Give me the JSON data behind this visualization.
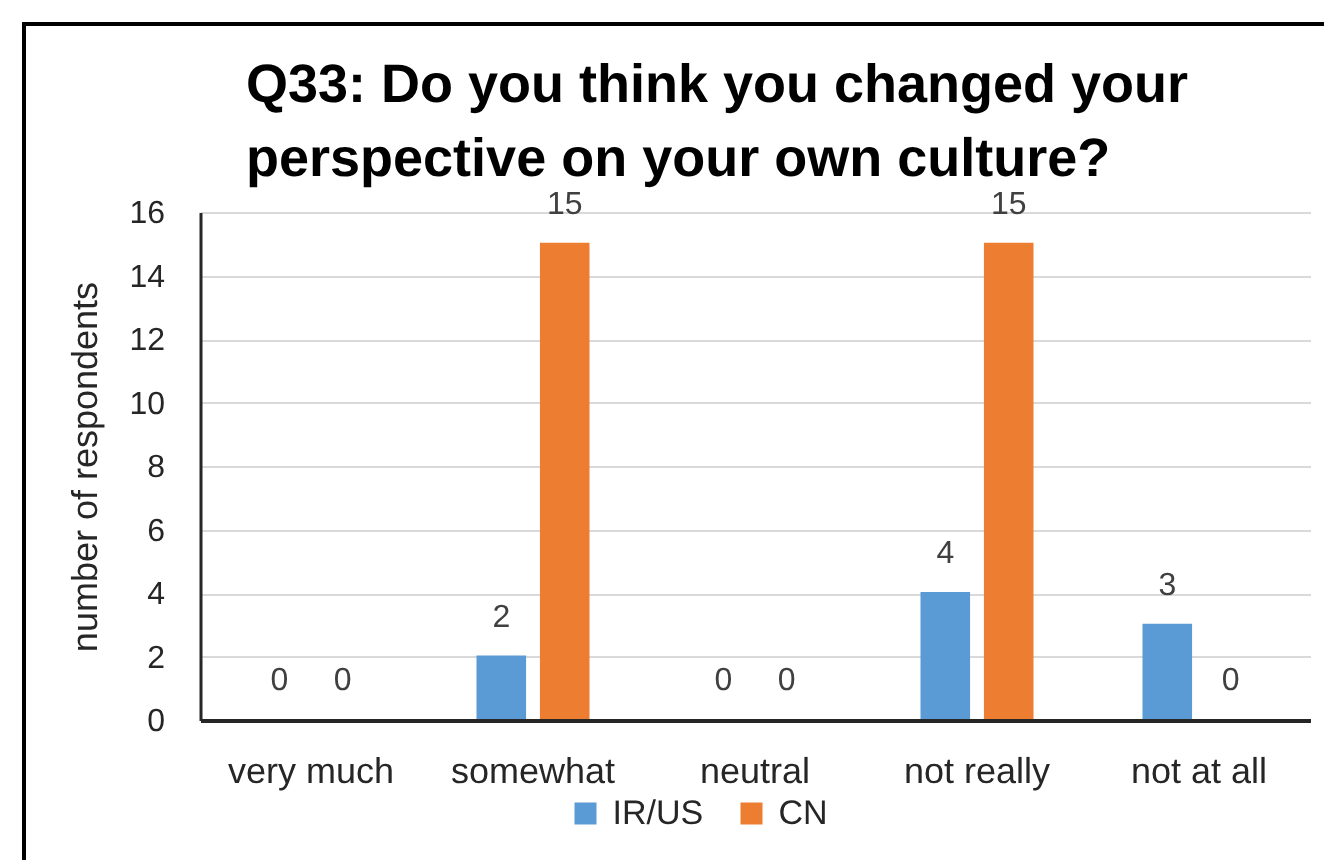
{
  "chart_data": {
    "type": "bar",
    "title": "Q33: Do you think you changed your perspective on your own culture?",
    "ylabel": "number of respondents",
    "categories": [
      "very much",
      "somewhat",
      "neutral",
      "not really",
      "not at all"
    ],
    "series": [
      {
        "name": "IR/US",
        "color": "#5b9bd5",
        "values": [
          0,
          2,
          0,
          4,
          3
        ]
      },
      {
        "name": "CN",
        "color": "#ed7d31",
        "values": [
          0,
          15,
          0,
          15,
          0
        ]
      }
    ],
    "ylim": [
      0,
      16
    ],
    "yticks": [
      0,
      2,
      4,
      6,
      8,
      10,
      12,
      14,
      16
    ],
    "grid": "y",
    "legend": "bottom",
    "data_labels": true
  }
}
